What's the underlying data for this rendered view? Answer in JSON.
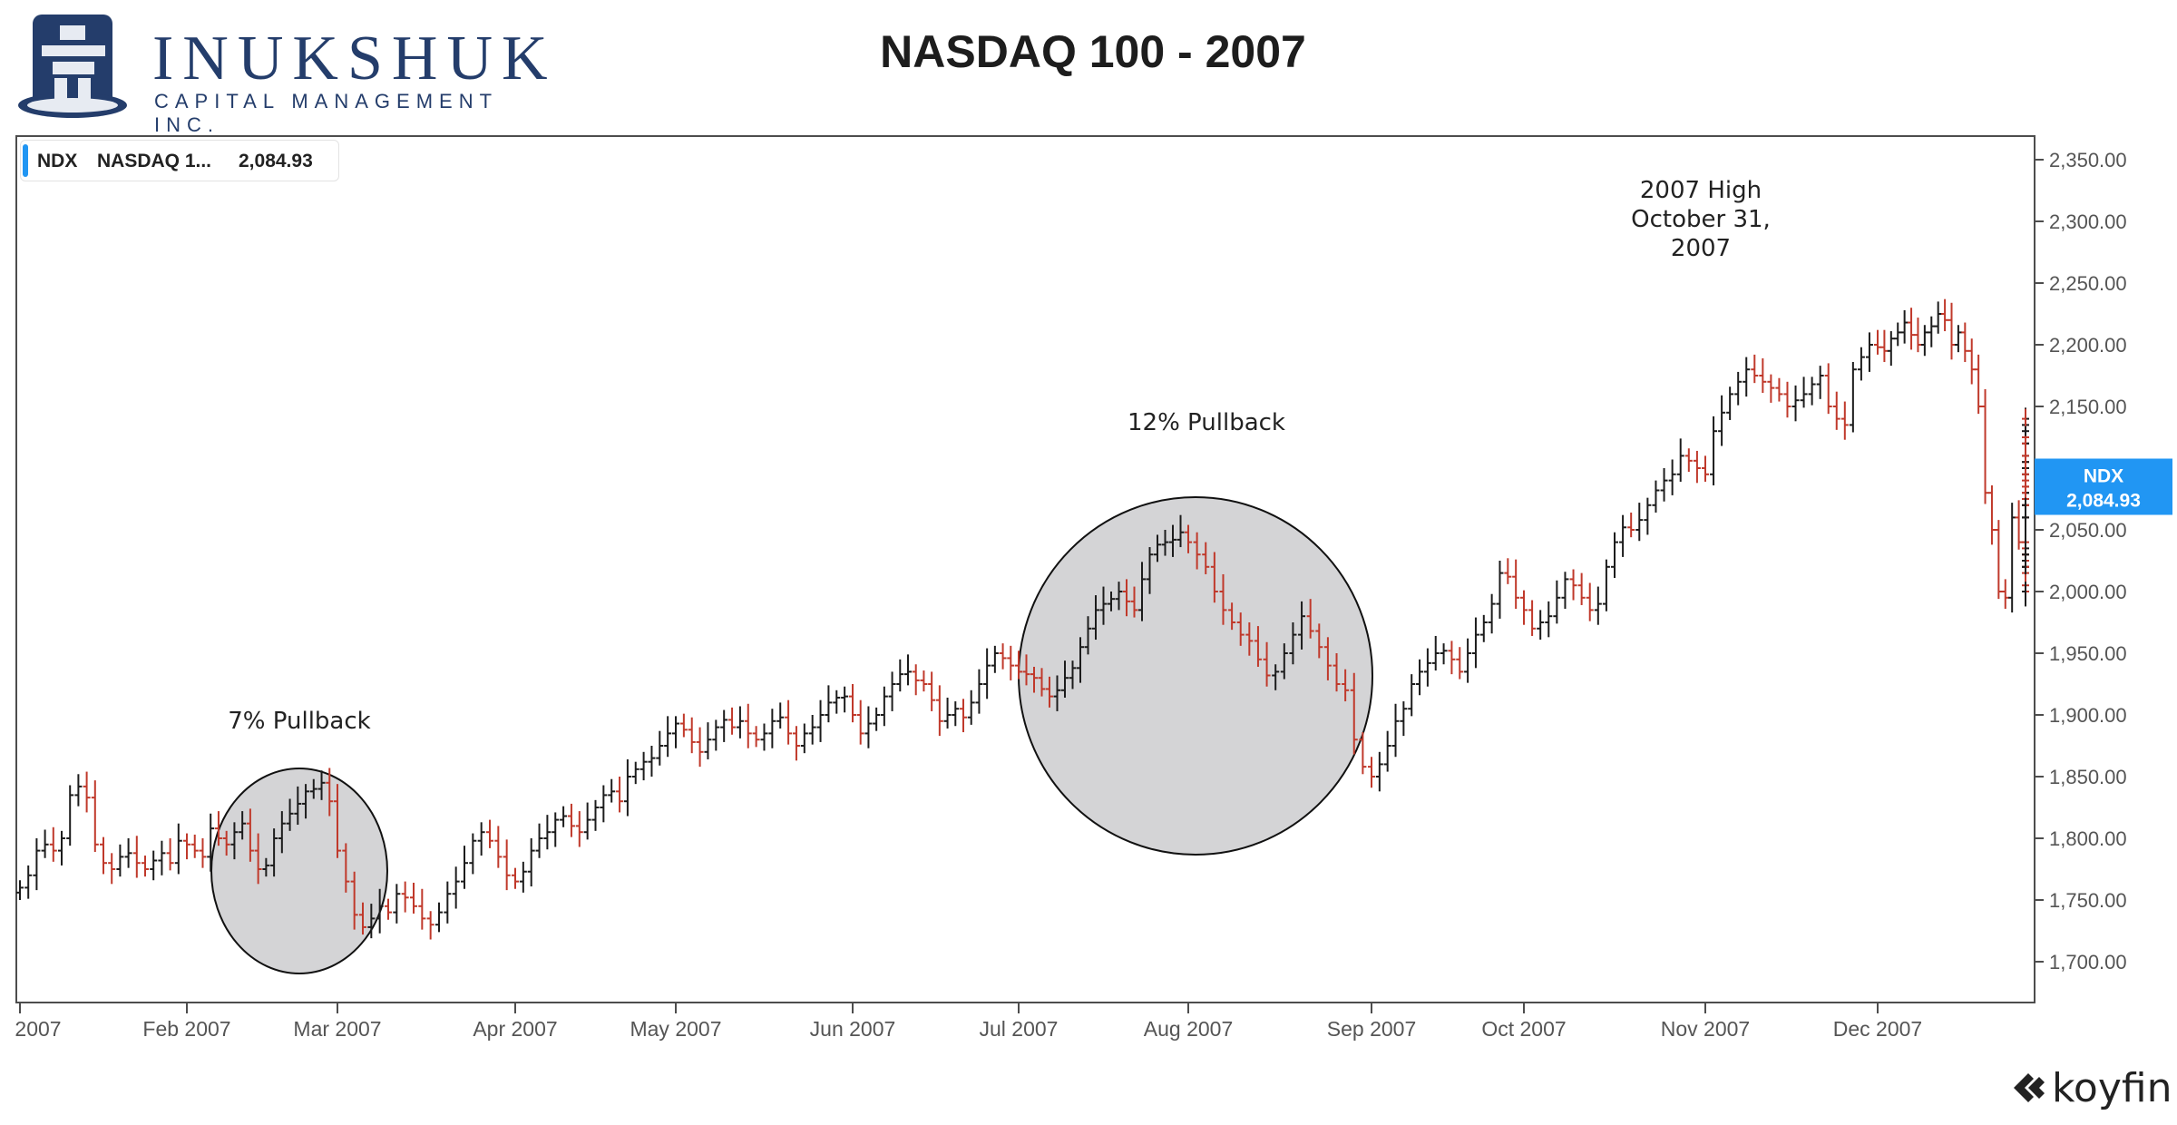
{
  "logo": {
    "name": "INUKSHUK",
    "subtitle": "CAPITAL MANAGEMENT INC."
  },
  "title": "NASDAQ 100 - 2007",
  "legend": {
    "symbol": "NDX",
    "name": "NASDAQ 1...",
    "value": "2,084.93"
  },
  "price_tag": {
    "symbol": "NDX",
    "value": "2,084.93"
  },
  "branding": "koyfin",
  "colors": {
    "up": "#1c1c1c",
    "down": "#c0392b",
    "axis": "#4d4d4d",
    "tag": "#2196f3",
    "circle_fill": "#d4d4d6"
  },
  "chart_data": {
    "type": "ohlc",
    "title": "NASDAQ 100 - 2007",
    "xlabel": "",
    "ylabel": "",
    "ylim": [
      1655,
      2370
    ],
    "yticks": [
      1700,
      1750,
      1800,
      1850,
      1900,
      1950,
      2000,
      2050,
      2100,
      2150,
      2200,
      2250,
      2300,
      2350
    ],
    "ytick_labels": [
      "1,700.00",
      "1,750.00",
      "1,800.00",
      "1,850.00",
      "1,900.00",
      "1,950.00",
      "2,000.00",
      "2,050.00",
      "2,100.00",
      "2,150.00",
      "2,200.00",
      "2,250.00",
      "2,300.00",
      "2,350.00"
    ],
    "xtick_labels": [
      "2007",
      "Feb 2007",
      "Mar 2007",
      "Apr 2007",
      "May 2007",
      "Jun 2007",
      "Jul 2007",
      "Aug 2007",
      "Sep 2007",
      "Oct 2007",
      "Nov 2007",
      "Dec 2007"
    ],
    "series": [
      {
        "name": "NDX",
        "close": [
          1760,
          1770,
          1790,
          1795,
          1790,
          1800,
          1835,
          1842,
          1833,
          1795,
          1780,
          1775,
          1785,
          1788,
          1780,
          1775,
          1782,
          1788,
          1780,
          1798,
          1795,
          1790,
          1785,
          1808,
          1800,
          1795,
          1805,
          1812,
          1790,
          1775,
          1778,
          1800,
          1812,
          1820,
          1828,
          1838,
          1840,
          1845,
          1830,
          1790,
          1765,
          1738,
          1728,
          1735,
          1745,
          1740,
          1755,
          1752,
          1745,
          1735,
          1730,
          1740,
          1755,
          1765,
          1780,
          1798,
          1805,
          1798,
          1785,
          1770,
          1765,
          1773,
          1790,
          1800,
          1805,
          1815,
          1818,
          1810,
          1805,
          1815,
          1825,
          1835,
          1838,
          1830,
          1850,
          1856,
          1862,
          1865,
          1875,
          1885,
          1893,
          1888,
          1878,
          1870,
          1880,
          1890,
          1896,
          1890,
          1895,
          1885,
          1880,
          1885,
          1895,
          1898,
          1885,
          1875,
          1885,
          1890,
          1900,
          1910,
          1914,
          1915,
          1900,
          1885,
          1893,
          1900,
          1915,
          1925,
          1933,
          1935,
          1928,
          1925,
          1912,
          1895,
          1900,
          1905,
          1898,
          1910,
          1925,
          1940,
          1950,
          1946,
          1940,
          1935,
          1933,
          1930,
          1921,
          1915,
          1920,
          1930,
          1938,
          1955,
          1970,
          1985,
          1990,
          1994,
          2000,
          1992,
          1985,
          2010,
          2030,
          2038,
          2040,
          2042,
          2048,
          2040,
          2030,
          2020,
          2000,
          1985,
          1975,
          1965,
          1960,
          1945,
          1932,
          1935,
          1950,
          1965,
          1980,
          1968,
          1955,
          1940,
          1925,
          1920,
          1880,
          1858,
          1850,
          1860,
          1875,
          1895,
          1905,
          1925,
          1935,
          1942,
          1950,
          1952,
          1945,
          1935,
          1950,
          1965,
          1975,
          1990,
          2015,
          2012,
          1995,
          1985,
          1970,
          1975,
          1980,
          1995,
          2010,
          2005,
          1995,
          1985,
          1990,
          2020,
          2040,
          2052,
          2050,
          2058,
          2070,
          2082,
          2090,
          2095,
          2110,
          2106,
          2100,
          2095,
          2130,
          2145,
          2160,
          2170,
          2180,
          2175,
          2170,
          2165,
          2160,
          2150,
          2155,
          2160,
          2168,
          2175,
          2150,
          2140,
          2135,
          2180,
          2190,
          2200,
          2198,
          2195,
          2205,
          2210,
          2218,
          2208,
          2200,
          2210,
          2215,
          2225,
          2220,
          2200,
          2210,
          2195,
          2180,
          2150,
          2080,
          2050,
          2000,
          1995,
          2060,
          2040,
          2025,
          2030,
          2025,
          2035,
          2020,
          2005,
          2000,
          2030,
          2015,
          2000,
          2020,
          2060,
          2070,
          2080,
          2100,
          2085,
          2075,
          2070,
          2060,
          2095,
          2100,
          2110,
          2120,
          2130,
          2135,
          2140,
          2125,
          2105,
          2090,
          2075,
          2070,
          2080,
          2040,
          2030,
          2020,
          2030,
          2060,
          2100,
          2105,
          2120,
          2110,
          2095,
          2085
        ],
        "last": 2084.93
      }
    ],
    "annotations": [
      {
        "text": "7% Pullback",
        "x": "2007-02-21",
        "y": 1870
      },
      {
        "text": "12% Pullback",
        "x": "2007-08-01",
        "y": 2135
      },
      {
        "text_lines": [
          "2007 High",
          "October 31,",
          "2007"
        ],
        "x": "2007-10-31",
        "y": 2290
      }
    ],
    "highlight_circles": [
      {
        "label": "7% Pullback",
        "x_range": [
          "2007-02-02",
          "2007-03-08"
        ],
        "y_range": [
          1695,
          1853
        ]
      },
      {
        "label": "12% Pullback",
        "x_range": [
          "2007-06-29",
          "2007-08-31"
        ],
        "y_range": [
          1786,
          2075
        ]
      }
    ],
    "grid": false,
    "legend_position": "top-left"
  }
}
